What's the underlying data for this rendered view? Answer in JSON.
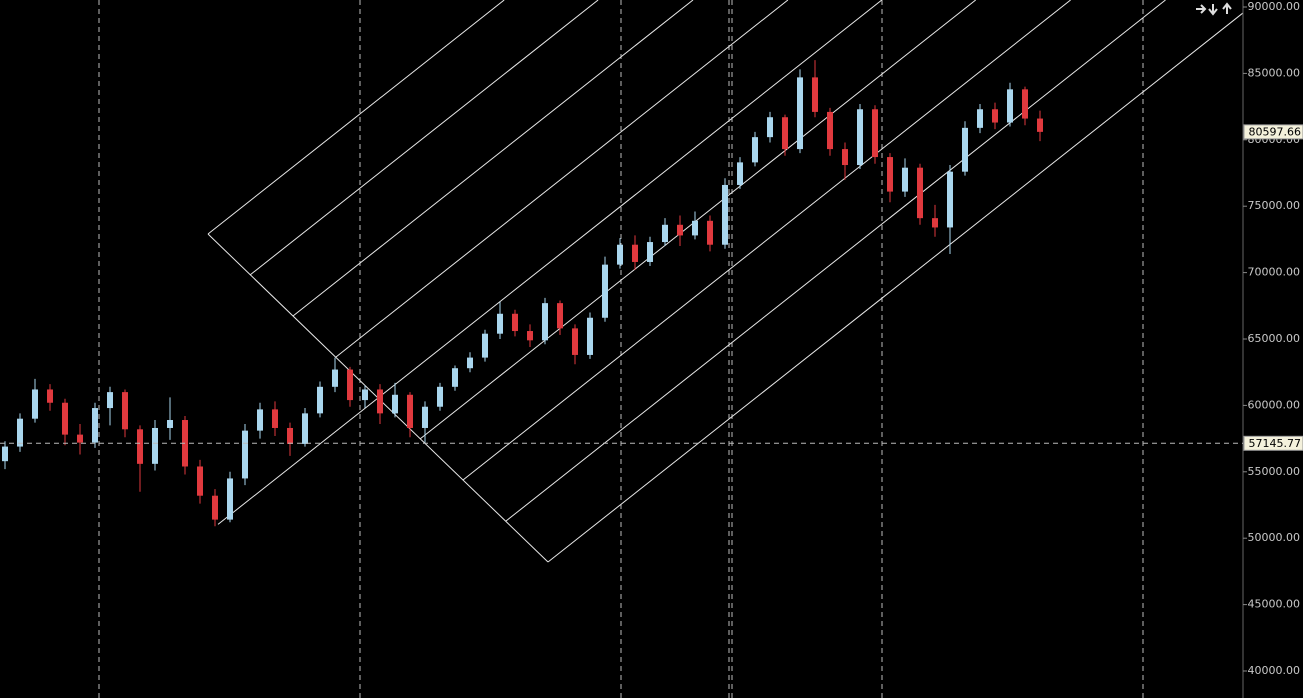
{
  "chart_data": {
    "type": "candlestick",
    "ylim": [
      40000,
      90000
    ],
    "yticks": [
      {
        "value": 40000,
        "label": "40000.00"
      },
      {
        "value": 45000,
        "label": "45000.00"
      },
      {
        "value": 50000,
        "label": "50000.00"
      },
      {
        "value": 55000,
        "label": "55000.00"
      },
      {
        "value": 60000,
        "label": "60000.00"
      },
      {
        "value": 65000,
        "label": "65000.00"
      },
      {
        "value": 70000,
        "label": "70000.00"
      },
      {
        "value": 75000,
        "label": "75000.00"
      },
      {
        "value": 80000,
        "label": "80000.00"
      },
      {
        "value": 85000,
        "label": "85000.00"
      },
      {
        "value": 90000,
        "label": "90000.00"
      }
    ],
    "up_color": "#a9d6ee",
    "down_color": "#e0393e",
    "last_price": 80597.66,
    "crosshair_price": 57145.77,
    "open": [
      55800,
      56900,
      59000,
      61200,
      60200,
      57800,
      57200,
      59800,
      61000,
      58200,
      55600,
      58300,
      58900,
      55400,
      53200,
      51400,
      54500,
      58100,
      59700,
      58300,
      57100,
      59400,
      61400,
      62700,
      60400,
      61200,
      59400,
      60800,
      58300,
      59900,
      61400,
      62800,
      63600,
      65400,
      66900,
      65600,
      64900,
      67700,
      65800,
      63800,
      66600,
      70600,
      72100,
      70800,
      72300,
      73600,
      72800,
      73900,
      72100,
      76600,
      78300,
      80200,
      81700,
      79300,
      84700,
      82100,
      79300,
      78100,
      82300,
      78700,
      76100,
      77900,
      74100,
      73400,
      77600,
      80900,
      82300,
      81300,
      83800,
      81600
    ],
    "high": [
      57300,
      59400,
      62000,
      61600,
      60500,
      58600,
      60200,
      61400,
      61200,
      58500,
      58900,
      60600,
      59200,
      55900,
      53700,
      55000,
      58600,
      60200,
      60300,
      58700,
      59800,
      61800,
      63600,
      62900,
      61500,
      61600,
      61700,
      61000,
      60300,
      61700,
      63000,
      64000,
      65700,
      67800,
      67200,
      66100,
      68100,
      67900,
      66100,
      67000,
      71200,
      72600,
      72800,
      72700,
      74100,
      74300,
      74600,
      74300,
      77100,
      78700,
      80600,
      82100,
      81900,
      85300,
      86000,
      82400,
      79800,
      82700,
      82600,
      79000,
      78600,
      78200,
      75100,
      78100,
      81400,
      82700,
      82800,
      84300,
      84000,
      82200
    ],
    "low": [
      55200,
      56500,
      58700,
      59600,
      57000,
      56300,
      56800,
      58500,
      57600,
      53500,
      55100,
      57400,
      54800,
      52600,
      50900,
      51200,
      54000,
      57500,
      57700,
      56200,
      56900,
      59100,
      61000,
      59900,
      59800,
      58600,
      59100,
      57600,
      57200,
      59600,
      61100,
      62500,
      63300,
      65000,
      65200,
      64400,
      64600,
      65300,
      63100,
      63500,
      66300,
      70300,
      70200,
      70500,
      72000,
      72000,
      72500,
      71600,
      71800,
      76300,
      78000,
      79800,
      78800,
      79000,
      81700,
      78800,
      77000,
      77800,
      78200,
      75300,
      75700,
      73600,
      72700,
      71400,
      77300,
      80500,
      80800,
      81000,
      81100,
      79900
    ],
    "close": [
      56900,
      59000,
      61200,
      60200,
      57800,
      57200,
      59800,
      61000,
      58200,
      55600,
      58300,
      58900,
      55400,
      53200,
      51400,
      54500,
      58100,
      59700,
      58300,
      57100,
      59400,
      61400,
      62700,
      60400,
      61200,
      59400,
      60800,
      58300,
      59900,
      61400,
      62800,
      63600,
      65400,
      66900,
      65600,
      64900,
      67700,
      65800,
      63800,
      66600,
      70600,
      72100,
      70800,
      72300,
      73600,
      72800,
      73900,
      72100,
      76600,
      78300,
      80200,
      81700,
      79300,
      84700,
      82100,
      79300,
      78100,
      82300,
      78700,
      76100,
      77900,
      74100,
      73400,
      77600,
      80900,
      82300,
      81300,
      83800,
      81600,
      80597.66
    ]
  }
}
